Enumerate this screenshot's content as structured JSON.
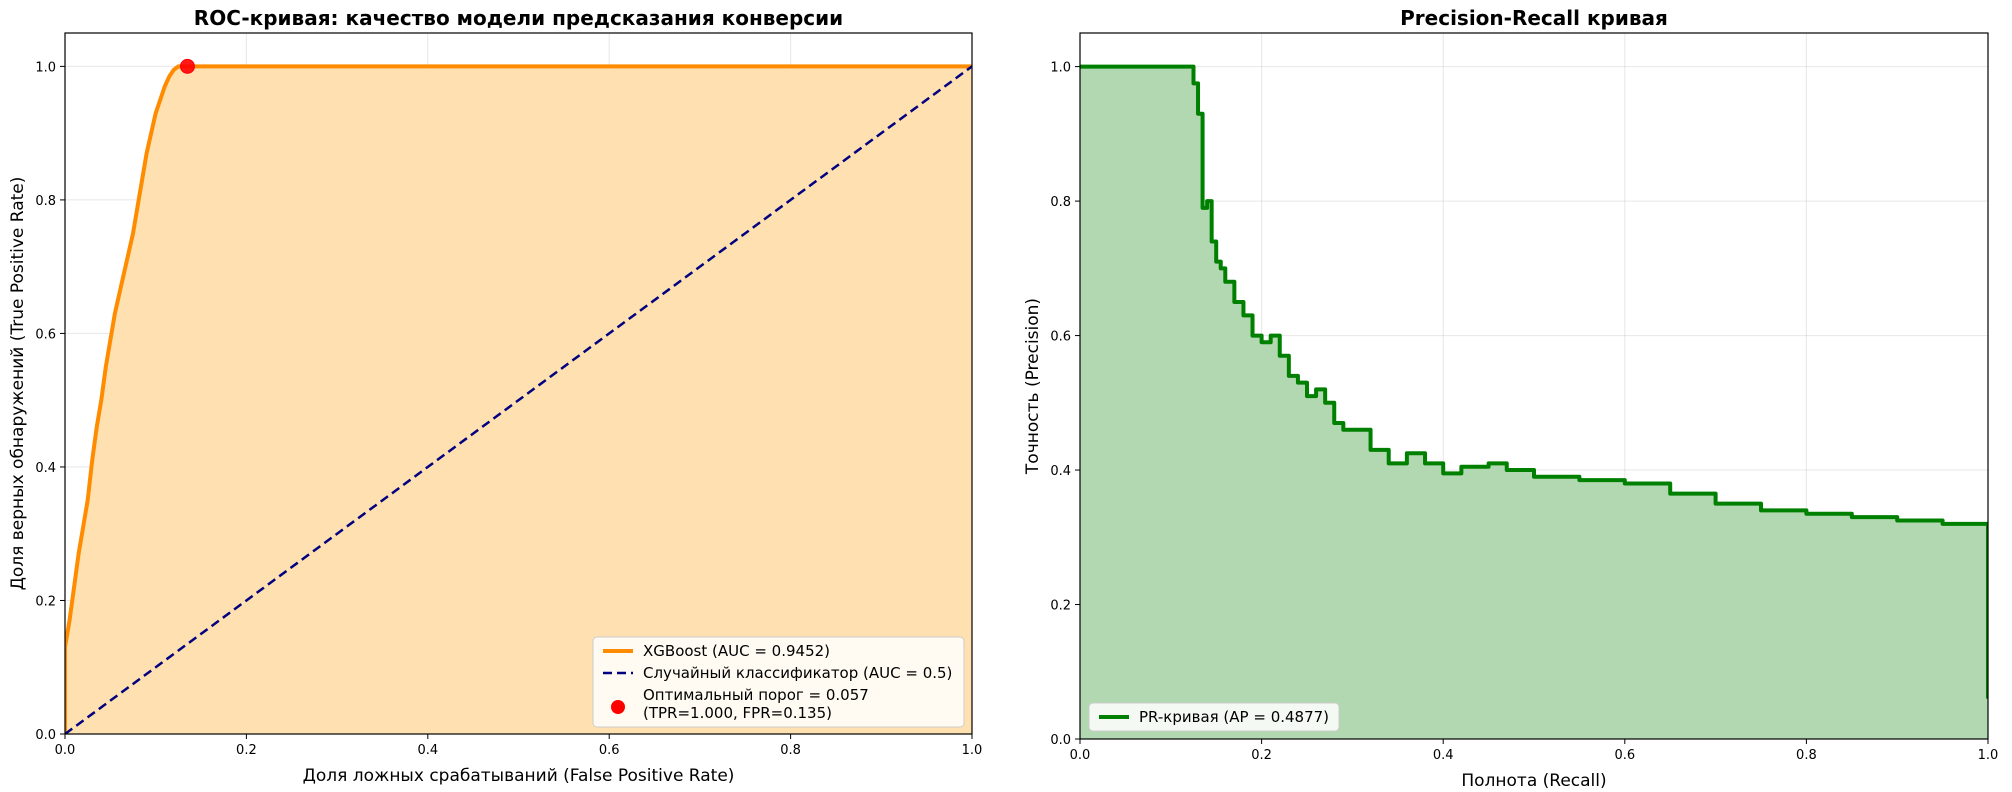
{
  "chart_data": [
    {
      "type": "line",
      "title": "ROC-кривая: качество модели предсказания конверсии",
      "xlabel": "Доля ложных срабатываний (False Positive Rate)",
      "ylabel": "Доля верных обнаружений (True Positive Rate)",
      "xlim": [
        0,
        1
      ],
      "ylim": [
        0,
        1.05
      ],
      "xticks": [
        "0.0",
        "0.2",
        "0.4",
        "0.6",
        "0.8",
        "1.0"
      ],
      "yticks": [
        "0.0",
        "0.2",
        "0.4",
        "0.6",
        "0.8",
        "1.0"
      ],
      "grid": true,
      "legend_position": "lower-right",
      "series": [
        {
          "name": "XGBoost (AUC = 0.9452)",
          "color": "#ff8c00",
          "fill_color": "#ffe0b0",
          "style": "solid",
          "x": [
            0.0,
            0.0,
            0.005,
            0.01,
            0.015,
            0.02,
            0.025,
            0.03,
            0.035,
            0.04,
            0.045,
            0.05,
            0.055,
            0.06,
            0.065,
            0.07,
            0.075,
            0.08,
            0.085,
            0.09,
            0.095,
            0.1,
            0.105,
            0.11,
            0.115,
            0.12,
            0.125,
            0.13,
            0.135,
            0.14,
            0.16,
            0.2,
            0.4,
            0.6,
            0.8,
            1.0
          ],
          "y": [
            0.0,
            0.13,
            0.17,
            0.22,
            0.27,
            0.31,
            0.35,
            0.41,
            0.46,
            0.5,
            0.55,
            0.59,
            0.63,
            0.66,
            0.69,
            0.72,
            0.75,
            0.79,
            0.83,
            0.87,
            0.9,
            0.93,
            0.95,
            0.97,
            0.985,
            0.995,
            1.0,
            1.0,
            1.0,
            1.0,
            1.0,
            1.0,
            1.0,
            1.0,
            1.0,
            1.0
          ]
        },
        {
          "name": "Случайный классификатор (AUC = 0.5)",
          "color": "#000080",
          "style": "dashed",
          "x": [
            0,
            1
          ],
          "y": [
            0,
            1
          ]
        }
      ],
      "points": [
        {
          "name": "Оптимальный порог = 0.057",
          "name_line2": "(TPR=1.000, FPR=0.135)",
          "x": 0.135,
          "y": 1.0,
          "color": "#ff0000"
        }
      ]
    },
    {
      "type": "line",
      "title": "Precision-Recall кривая",
      "xlabel": "Полнота (Recall)",
      "ylabel": "Точность (Precision)",
      "xlim": [
        0,
        1
      ],
      "ylim": [
        0,
        1.05
      ],
      "xticks": [
        "0.0",
        "0.2",
        "0.4",
        "0.6",
        "0.8",
        "1.0"
      ],
      "yticks": [
        "0.0",
        "0.2",
        "0.4",
        "0.6",
        "0.8",
        "1.0"
      ],
      "grid": true,
      "legend_position": "lower-left",
      "series": [
        {
          "name": "PR-кривая (AP = 0.4877)",
          "color": "#008000",
          "fill_color": "#b2d8b2",
          "style": "step",
          "x": [
            0.0,
            0.12,
            0.125,
            0.13,
            0.135,
            0.14,
            0.145,
            0.15,
            0.155,
            0.16,
            0.17,
            0.18,
            0.19,
            0.2,
            0.21,
            0.22,
            0.23,
            0.24,
            0.25,
            0.26,
            0.27,
            0.28,
            0.29,
            0.3,
            0.32,
            0.34,
            0.36,
            0.38,
            0.4,
            0.42,
            0.45,
            0.47,
            0.5,
            0.55,
            0.6,
            0.65,
            0.7,
            0.75,
            0.8,
            0.85,
            0.9,
            0.95,
            0.999,
            1.0
          ],
          "y": [
            1.0,
            1.0,
            0.975,
            0.93,
            0.79,
            0.8,
            0.74,
            0.71,
            0.7,
            0.68,
            0.65,
            0.63,
            0.6,
            0.59,
            0.6,
            0.57,
            0.54,
            0.53,
            0.51,
            0.52,
            0.5,
            0.47,
            0.46,
            0.46,
            0.43,
            0.41,
            0.425,
            0.41,
            0.395,
            0.405,
            0.41,
            0.4,
            0.39,
            0.385,
            0.38,
            0.365,
            0.35,
            0.34,
            0.335,
            0.33,
            0.325,
            0.32,
            0.32,
            0.06
          ]
        }
      ]
    }
  ]
}
